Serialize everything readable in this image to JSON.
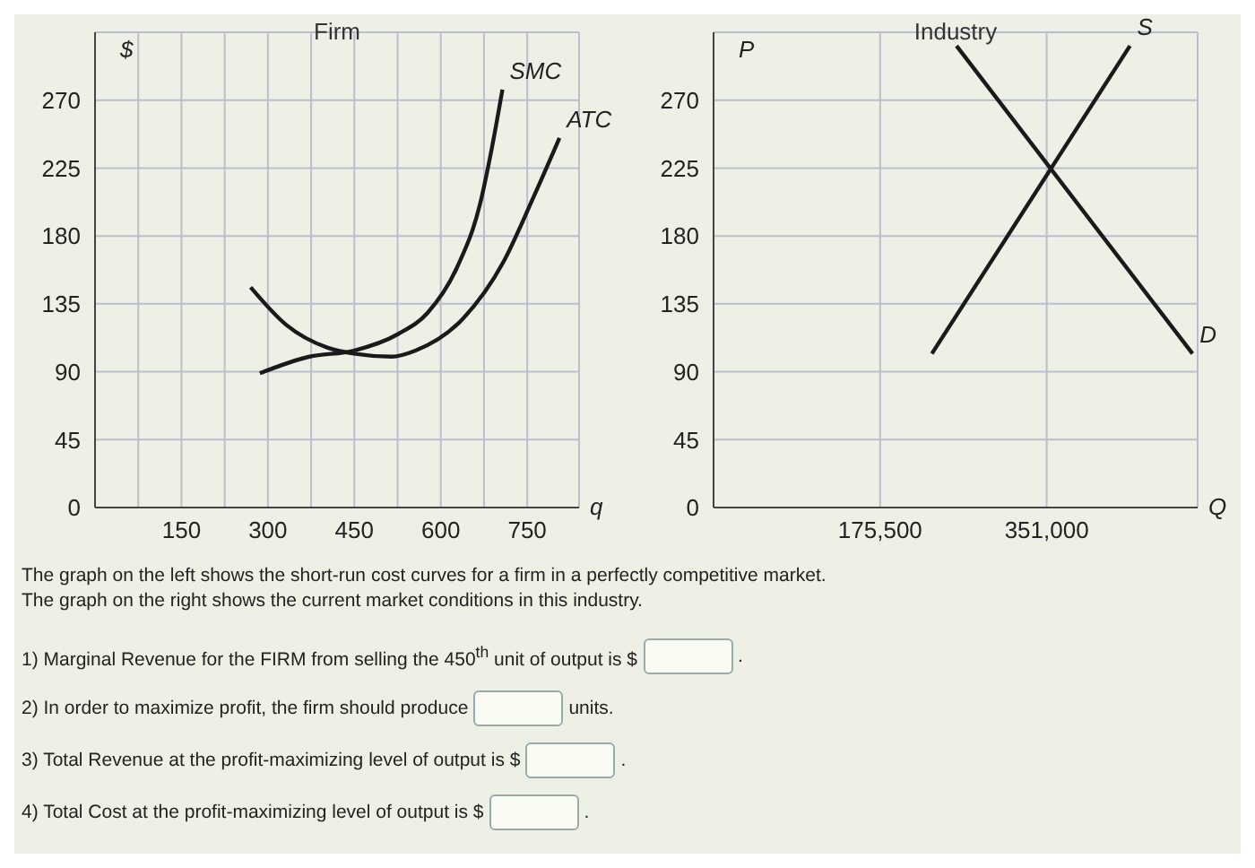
{
  "chart_data": [
    {
      "type": "line",
      "title": "Firm",
      "xlabel": "q",
      "ylabel": "$",
      "xlim": [
        0,
        840
      ],
      "ylim": [
        0,
        315
      ],
      "xticks": [
        {
          "value": 75,
          "label": null
        },
        150,
        {
          "value": 225,
          "label": null
        },
        300,
        {
          "value": 375,
          "label": null
        },
        450,
        {
          "value": 525,
          "label": null
        },
        600,
        {
          "value": 675,
          "label": null
        },
        750
      ],
      "yticks": [
        0,
        45,
        90,
        135,
        180,
        225,
        270
      ],
      "grid": true,
      "series": [
        {
          "name": "SMC",
          "color": "#1a1a1a",
          "x": [
            286,
            372,
            449,
            526,
            577,
            628,
            668,
            689,
            707
          ],
          "values": [
            89,
            100,
            104,
            115,
            129,
            159,
            201,
            239,
            277
          ]
        },
        {
          "name": "ATC",
          "color": "#1a1a1a",
          "x": [
            270,
            332,
            403,
            449,
            515,
            556,
            638,
            709,
            760,
            806
          ],
          "values": [
            146,
            121,
            106,
            102,
            100,
            104,
            125,
            163,
            205,
            245
          ]
        }
      ],
      "annotations": [
        "The graph on the left shows the short-run cost curves for a firm in a perfectly competitive market.",
        "The graph on the right shows the current market conditions in this industry.",
        "1) Marginal Revenue for the FIRM from selling the 450$^{th}$ unit of output is $",
        ".",
        "2) In order to maximize profit, the firm should produce",
        "units.",
        "3) Total Revenue at the profit-maximizing level of output is $",
        ".",
        "4) Total Cost at the profit-maximizing level of output is $",
        "."
      ]
    },
    {
      "type": "line",
      "title": "Industry",
      "xlabel": "Q",
      "ylabel": "P",
      "xlim": [
        0,
        510000
      ],
      "ylim": [
        0,
        315
      ],
      "xticks": [
        {
          "value": 175500,
          "label": "175,500"
        },
        {
          "value": 351000,
          "label": "351,000"
        }
      ],
      "yticks": [
        0,
        45,
        90,
        135,
        180,
        225,
        270
      ],
      "grid": true,
      "series": [
        {
          "name": "S",
          "color": "#1a1a1a",
          "x": [
            230000,
            438700
          ],
          "values": [
            102,
            306
          ]
        },
        {
          "name": "D",
          "color": "#1a1a1a",
          "x": [
            256000,
            504600
          ],
          "values": [
            306,
            102
          ]
        }
      ]
    }
  ]
}
